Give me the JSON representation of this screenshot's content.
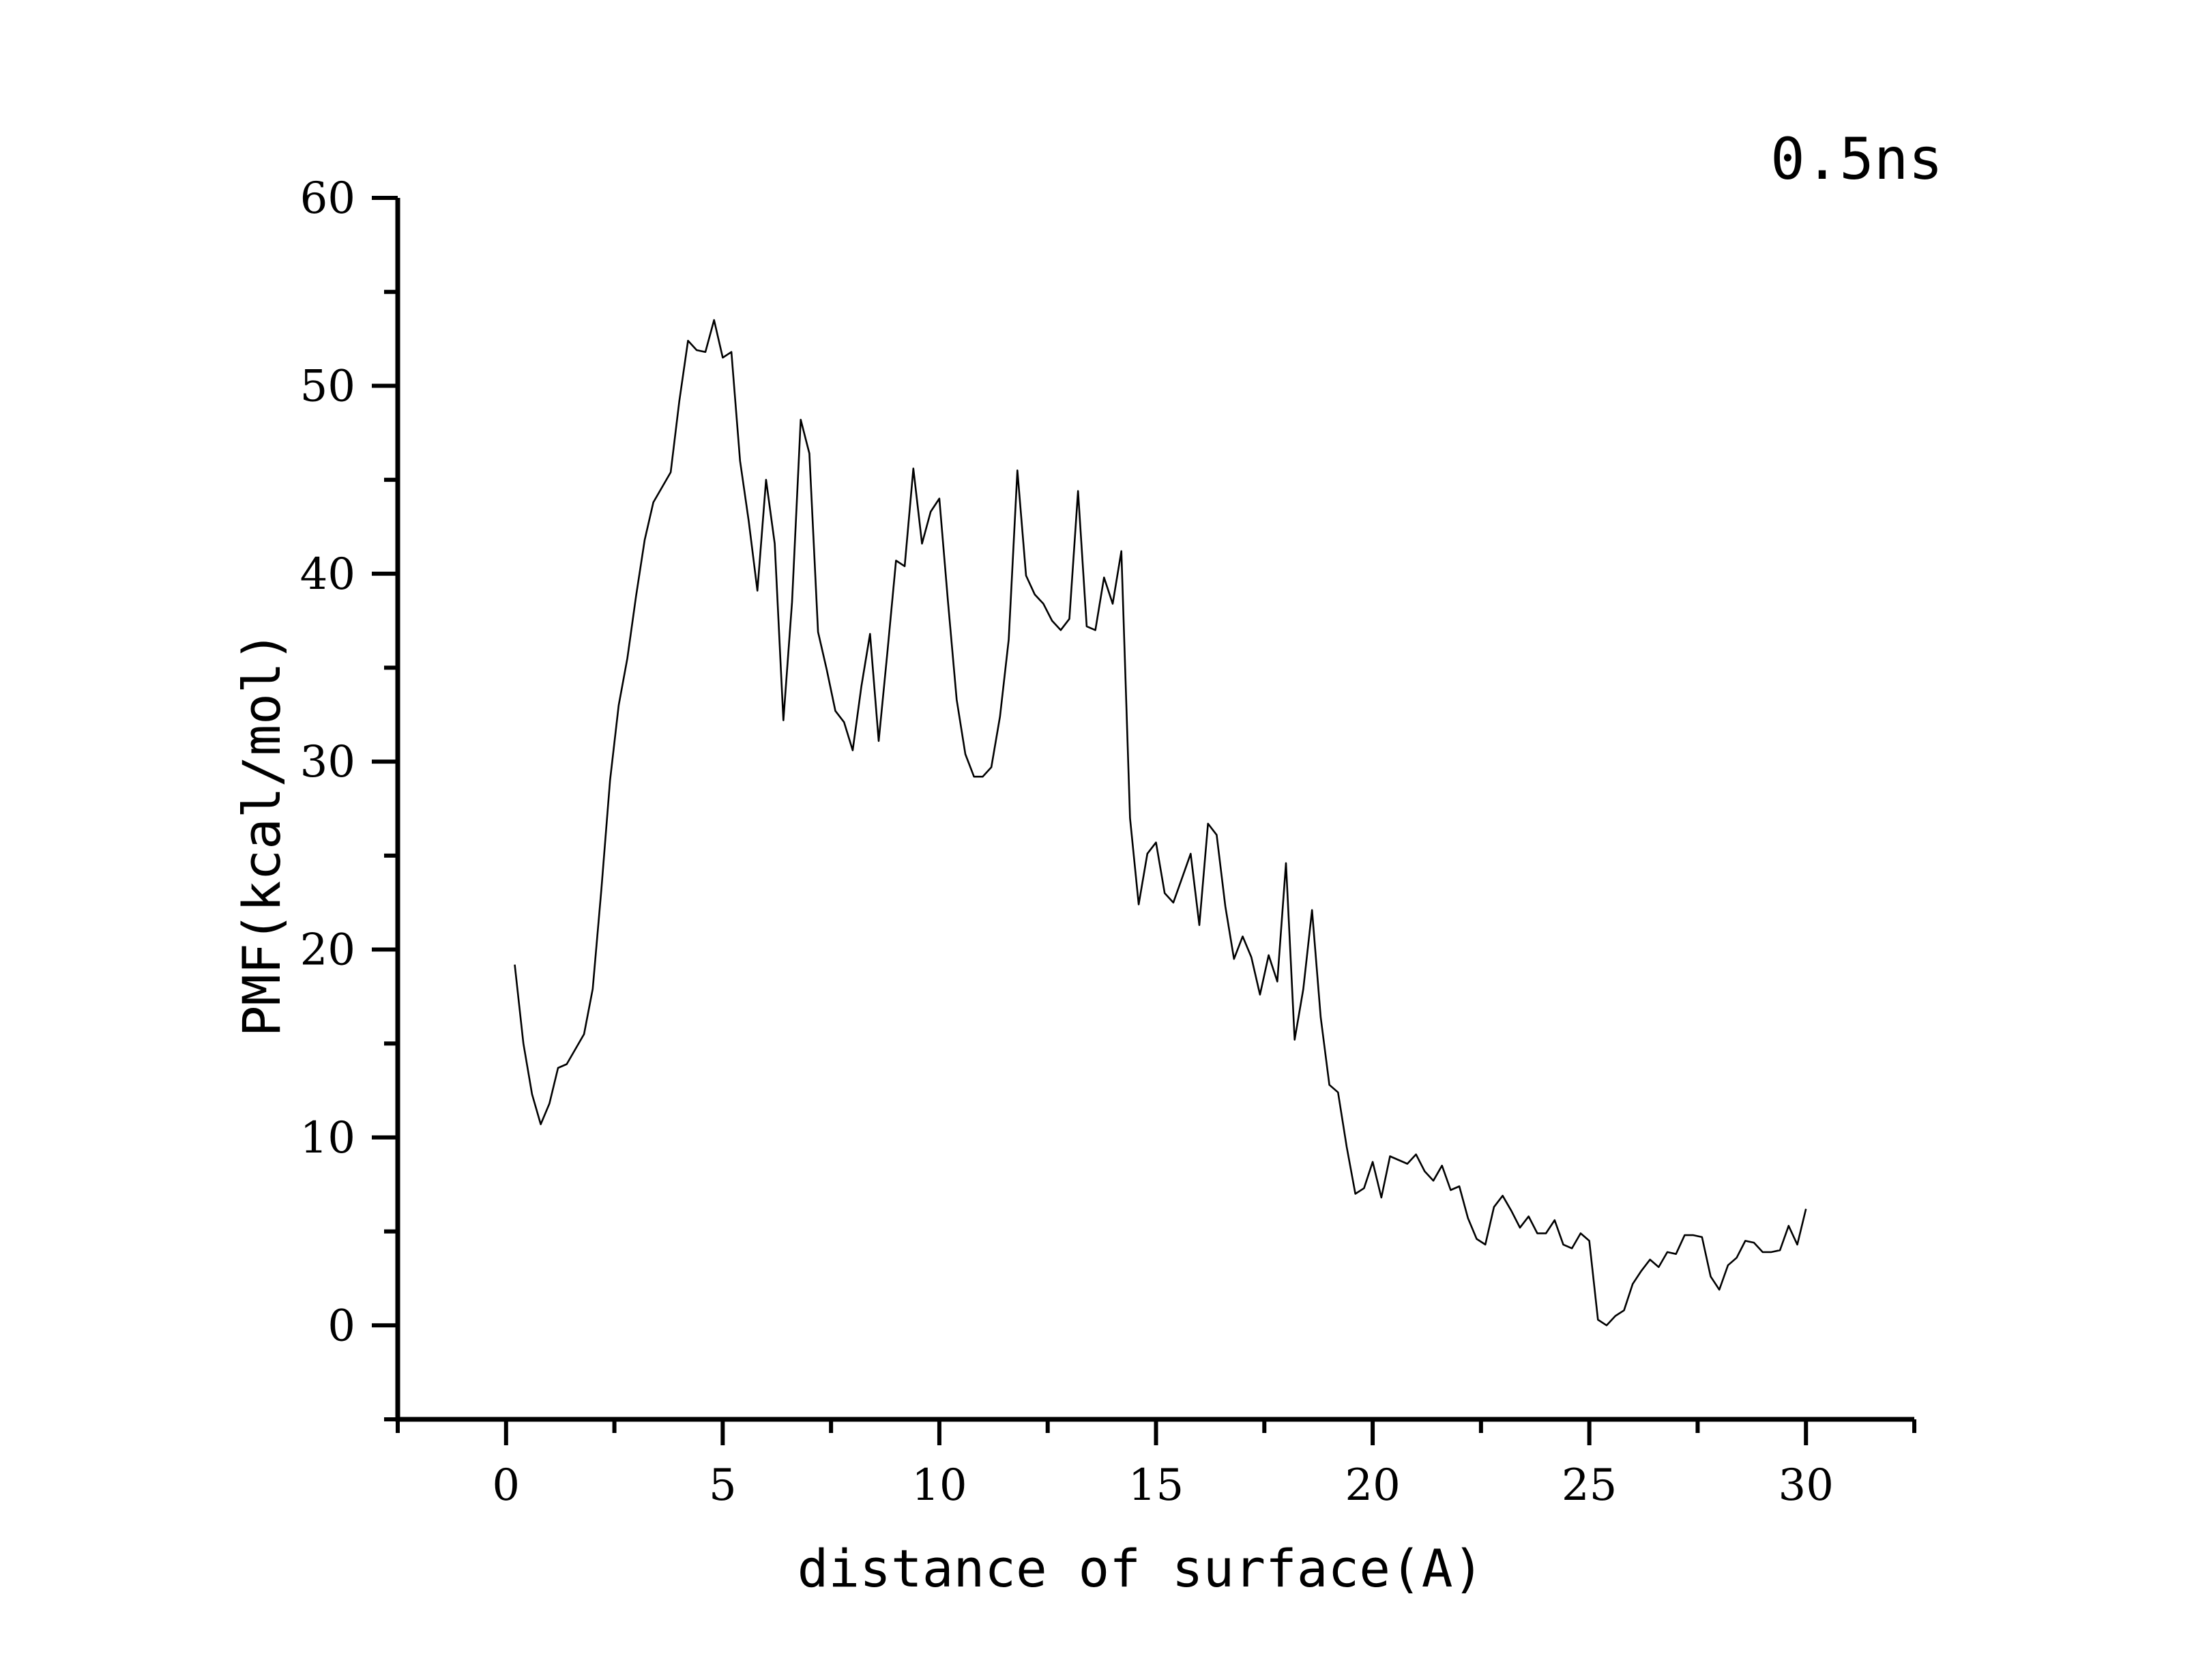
{
  "chart_data": {
    "type": "line",
    "xlabel": "distance of surface(A)",
    "ylabel": "PMF(kcal/mol)",
    "annotation": "0.5ns",
    "xlim": [
      -2.5,
      32.5
    ],
    "ylim": [
      -5,
      60
    ],
    "xticks": [
      "0",
      "5",
      "10",
      "15",
      "20",
      "25",
      "30"
    ],
    "yticks": [
      "0",
      "10",
      "20",
      "30",
      "40",
      "50",
      "60"
    ],
    "grid": false,
    "legend": "none",
    "line_color": "#000000",
    "series": [
      {
        "x": [
          0.2,
          0.4,
          0.6,
          0.8,
          1.0,
          1.2,
          1.4,
          1.6,
          1.8,
          2.0,
          2.2,
          2.4,
          2.6,
          2.8,
          3.0,
          3.2,
          3.4,
          3.6,
          3.8,
          4.0,
          4.2,
          4.4,
          4.6,
          4.8,
          5.0,
          5.2,
          5.4,
          5.6,
          5.8,
          6.0,
          6.2,
          6.4,
          6.6,
          6.8,
          7.0,
          7.2,
          7.4,
          7.6,
          7.8,
          8.0,
          8.2,
          8.4,
          8.6,
          8.8,
          9.0,
          9.2,
          9.4,
          9.6,
          9.8,
          10.0,
          10.2,
          10.4,
          10.6,
          10.8,
          11.0,
          11.2,
          11.4,
          11.6,
          11.8,
          12.0,
          12.2,
          12.4,
          12.6,
          12.8,
          13.0,
          13.2,
          13.4,
          13.6,
          13.8,
          14.0,
          14.2,
          14.4,
          14.6,
          14.8,
          15.0,
          15.2,
          15.4,
          15.6,
          15.8,
          16.0,
          16.2,
          16.4,
          16.6,
          16.8,
          17.0,
          17.2,
          17.4,
          17.6,
          17.8,
          18.0,
          18.2,
          18.4,
          18.6,
          18.8,
          19.0,
          19.2,
          19.4,
          19.6,
          19.8,
          20.0,
          20.2,
          20.4,
          20.6,
          20.8,
          21.0,
          21.2,
          21.4,
          21.6,
          21.8,
          22.0,
          22.2,
          22.4,
          22.6,
          22.8,
          23.0,
          23.2,
          23.4,
          23.6,
          23.8,
          24.0,
          24.2,
          24.4,
          24.6,
          24.8,
          25.0,
          25.2,
          25.4,
          25.6,
          25.8,
          26.0,
          26.2,
          26.4,
          26.6,
          26.8,
          27.0,
          27.2,
          27.4,
          27.6,
          27.8,
          28.0,
          28.2,
          28.4,
          28.6,
          28.8,
          29.0,
          29.2,
          29.4,
          29.6,
          29.8,
          30.0
        ],
        "y": [
          19.2,
          15.0,
          12.3,
          10.7,
          11.8,
          13.7,
          13.9,
          14.7,
          15.5,
          17.9,
          23.2,
          29.0,
          33.0,
          35.5,
          38.8,
          41.8,
          43.8,
          44.6,
          45.4,
          49.2,
          52.4,
          51.9,
          51.8,
          53.5,
          51.5,
          51.8,
          46.0,
          42.8,
          39.1,
          45.0,
          41.6,
          32.2,
          38.5,
          48.2,
          46.4,
          36.9,
          34.9,
          32.7,
          32.1,
          30.6,
          34.0,
          36.8,
          31.1,
          35.8,
          40.7,
          40.4,
          45.6,
          41.6,
          43.3,
          44.0,
          38.5,
          33.3,
          30.4,
          29.2,
          29.2,
          29.7,
          32.4,
          36.5,
          45.5,
          39.9,
          38.9,
          38.4,
          37.5,
          37.0,
          37.6,
          44.4,
          37.2,
          37.0,
          39.8,
          38.4,
          41.2,
          27.0,
          22.4,
          25.1,
          25.7,
          23.0,
          22.5,
          23.8,
          25.1,
          21.3,
          26.7,
          26.1,
          22.3,
          19.5,
          20.7,
          19.6,
          17.6,
          19.7,
          18.3,
          24.6,
          15.2,
          17.9,
          22.1,
          16.4,
          12.8,
          12.4,
          9.5,
          7.0,
          7.3,
          8.7,
          6.8,
          9.0,
          8.8,
          8.6,
          9.1,
          8.2,
          7.7,
          8.5,
          7.2,
          7.4,
          5.7,
          4.6,
          4.3,
          6.3,
          6.9,
          6.1,
          5.2,
          5.8,
          4.9,
          4.9,
          5.6,
          4.3,
          4.1,
          4.9,
          4.5,
          0.3,
          0.0,
          0.5,
          0.8,
          2.2,
          2.9,
          3.5,
          3.1,
          3.9,
          3.8,
          4.8,
          4.8,
          4.7,
          2.6,
          1.9,
          3.2,
          3.6,
          4.5,
          4.4,
          3.9,
          3.9,
          4.0,
          5.3,
          4.3,
          6.2
        ]
      }
    ]
  }
}
